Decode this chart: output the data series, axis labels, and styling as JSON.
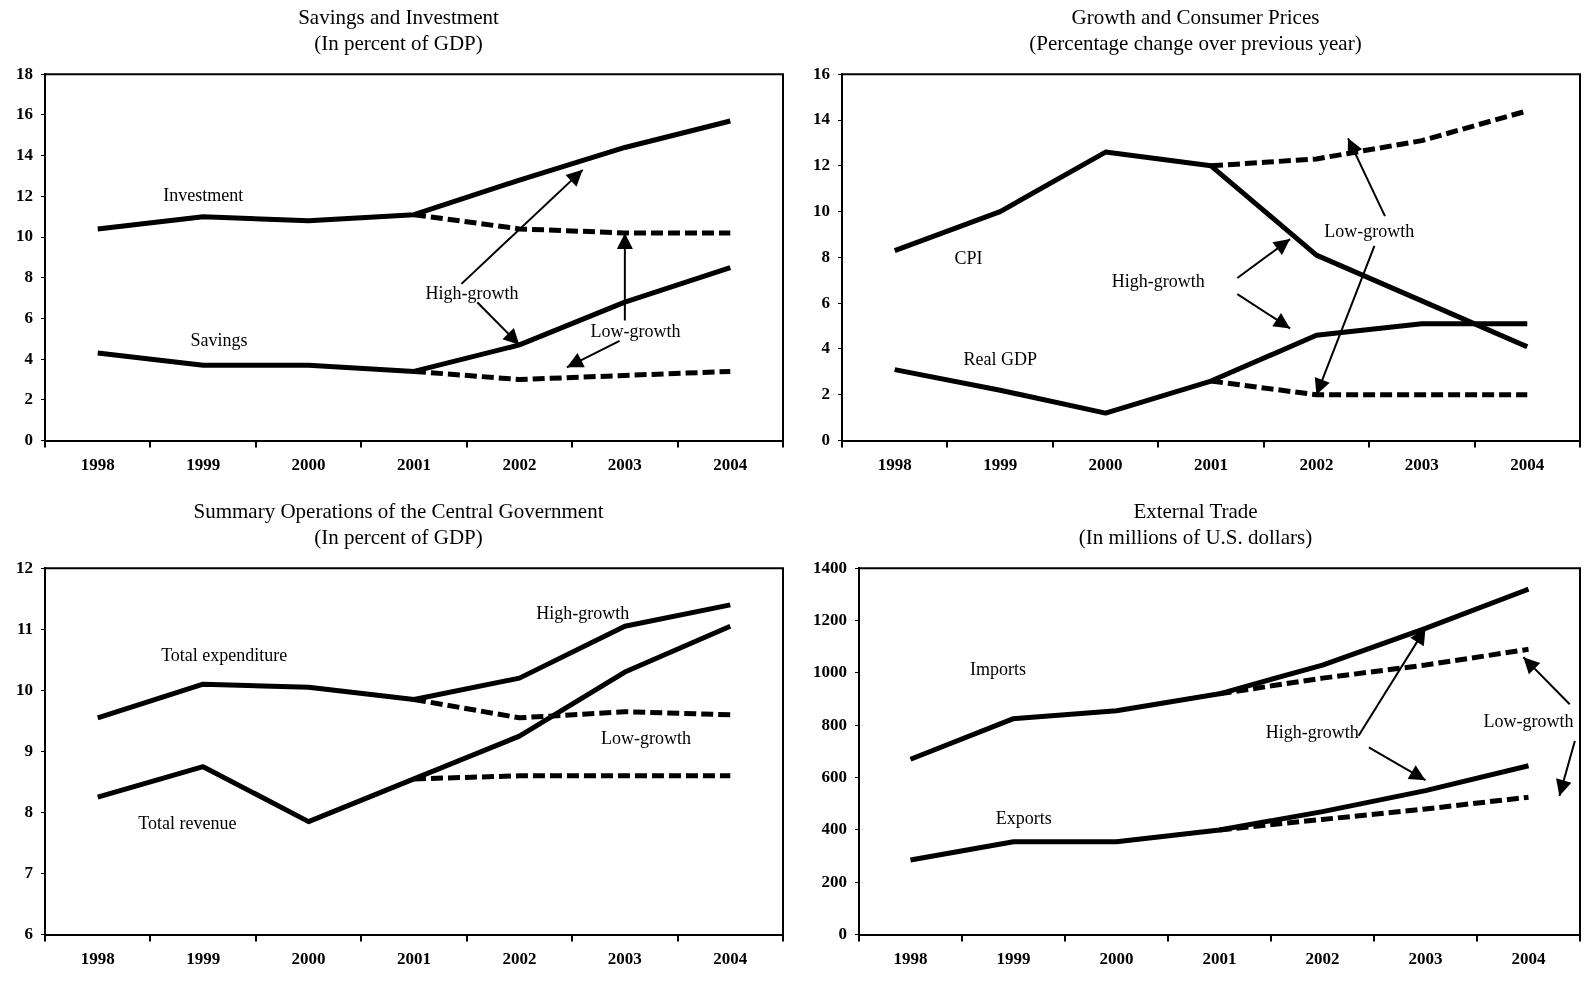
{
  "chart_data": [
    {
      "type": "line",
      "title": "Savings and Investment",
      "subtitle": "(In percent of GDP)",
      "categories": [
        "1998",
        "1999",
        "2000",
        "2001",
        "2002",
        "2003",
        "2004"
      ],
      "ylim": [
        0,
        18
      ],
      "yticks": [
        0,
        2,
        4,
        6,
        8,
        10,
        12,
        14,
        16,
        18
      ],
      "grid": false,
      "legend": false,
      "series": [
        {
          "name": "Investment",
          "color": "#000000",
          "line_style": "solid",
          "values": [
            10.4,
            11.0,
            10.8,
            11.1,
            12.8,
            14.4,
            15.7
          ]
        },
        {
          "color": "#000000",
          "line_style": "dashed",
          "values": [
            null,
            null,
            null,
            11.1,
            10.4,
            10.2,
            10.2
          ]
        },
        {
          "name": "Savings",
          "color": "#000000",
          "line_style": "solid",
          "values": [
            4.3,
            3.7,
            3.7,
            3.4,
            4.7,
            6.8,
            8.5
          ]
        },
        {
          "color": "#000000",
          "line_style": "dashed",
          "values": [
            null,
            null,
            null,
            3.4,
            3.0,
            3.2,
            3.4
          ]
        }
      ],
      "annotations": [
        {
          "text": "High-growth",
          "x": "2002",
          "y": 4.7
        },
        {
          "text": "Low-growth",
          "x": "2003",
          "y": 10.2
        }
      ]
    },
    {
      "type": "line",
      "title": "Growth and Consumer Prices",
      "subtitle": "(Percentage change over previous year)",
      "categories": [
        "1998",
        "1999",
        "2000",
        "2001",
        "2002",
        "2003",
        "2004"
      ],
      "ylim": [
        0,
        16
      ],
      "yticks": [
        0,
        2,
        4,
        6,
        8,
        10,
        12,
        14,
        16
      ],
      "grid": false,
      "legend": false,
      "series": [
        {
          "name": "CPI",
          "color": "#000000",
          "line_style": "solid",
          "values": [
            8.3,
            10.0,
            12.6,
            12.0,
            8.1,
            6.1,
            4.1
          ]
        },
        {
          "color": "#000000",
          "line_style": "dashed",
          "values": [
            null,
            null,
            null,
            12.0,
            12.3,
            13.1,
            14.4
          ]
        },
        {
          "name": "Real GDP",
          "color": "#000000",
          "line_style": "solid",
          "values": [
            3.1,
            2.2,
            1.2,
            2.6,
            4.6,
            5.1,
            5.1
          ]
        },
        {
          "color": "#000000",
          "line_style": "dashed",
          "values": [
            null,
            null,
            null,
            2.6,
            2.0,
            2.0,
            2.0
          ]
        }
      ],
      "annotations": [
        "High-growth",
        {
          "text": "Low-growth",
          "x": "2002",
          "y": 2.0
        }
      ]
    },
    {
      "type": "line",
      "title": "Summary Operations of the Central Government",
      "subtitle": "(In percent of GDP)",
      "categories": [
        "1998",
        "1999",
        "2000",
        "2001",
        "2002",
        "2003",
        "2004"
      ],
      "ylim": [
        6,
        12
      ],
      "yticks": [
        6,
        7,
        8,
        9,
        10,
        11,
        12
      ],
      "grid": false,
      "legend": false,
      "series": [
        {
          "name": "Total expenditure",
          "color": "#000000",
          "line_style": "solid",
          "values": [
            9.55,
            10.1,
            10.05,
            9.85,
            10.2,
            11.05,
            11.4
          ]
        },
        {
          "color": "#000000",
          "line_style": "dashed",
          "values": [
            null,
            null,
            null,
            9.85,
            9.55,
            9.65,
            9.6
          ]
        },
        {
          "name": "Total revenue",
          "color": "#000000",
          "line_style": "solid",
          "values": [
            8.25,
            8.75,
            7.85,
            8.55,
            9.25,
            10.3,
            11.05
          ]
        },
        {
          "color": "#000000",
          "line_style": "dashed",
          "values": [
            null,
            null,
            null,
            8.55,
            8.6,
            8.6,
            8.6
          ]
        }
      ],
      "annotations": [
        "High-growth",
        "Low-growth"
      ]
    },
    {
      "type": "line",
      "title": "External Trade",
      "subtitle": "(In millions of U.S. dollars)",
      "categories": [
        "1998",
        "1999",
        "2000",
        "2001",
        "2002",
        "2003",
        "2004"
      ],
      "ylim": [
        0,
        1400
      ],
      "yticks": [
        0,
        200,
        400,
        600,
        800,
        1000,
        1200,
        1400
      ],
      "grid": false,
      "legend": false,
      "series": [
        {
          "name": "Imports",
          "color": "#000000",
          "line_style": "solid",
          "values": [
            670,
            825,
            855,
            920,
            1030,
            1170,
            1320
          ]
        },
        {
          "color": "#000000",
          "line_style": "dashed",
          "values": [
            null,
            null,
            null,
            920,
            980,
            1030,
            1090
          ]
        },
        {
          "name": "Exports",
          "color": "#000000",
          "line_style": "solid",
          "values": [
            285,
            355,
            355,
            400,
            470,
            550,
            645
          ]
        },
        {
          "color": "#000000",
          "line_style": "dashed",
          "values": [
            null,
            null,
            null,
            400,
            440,
            480,
            525
          ]
        }
      ],
      "annotations": [
        {
          "text": "High-growth",
          "x": "2003",
          "y": 1170
        },
        "Low-growth"
      ]
    }
  ]
}
